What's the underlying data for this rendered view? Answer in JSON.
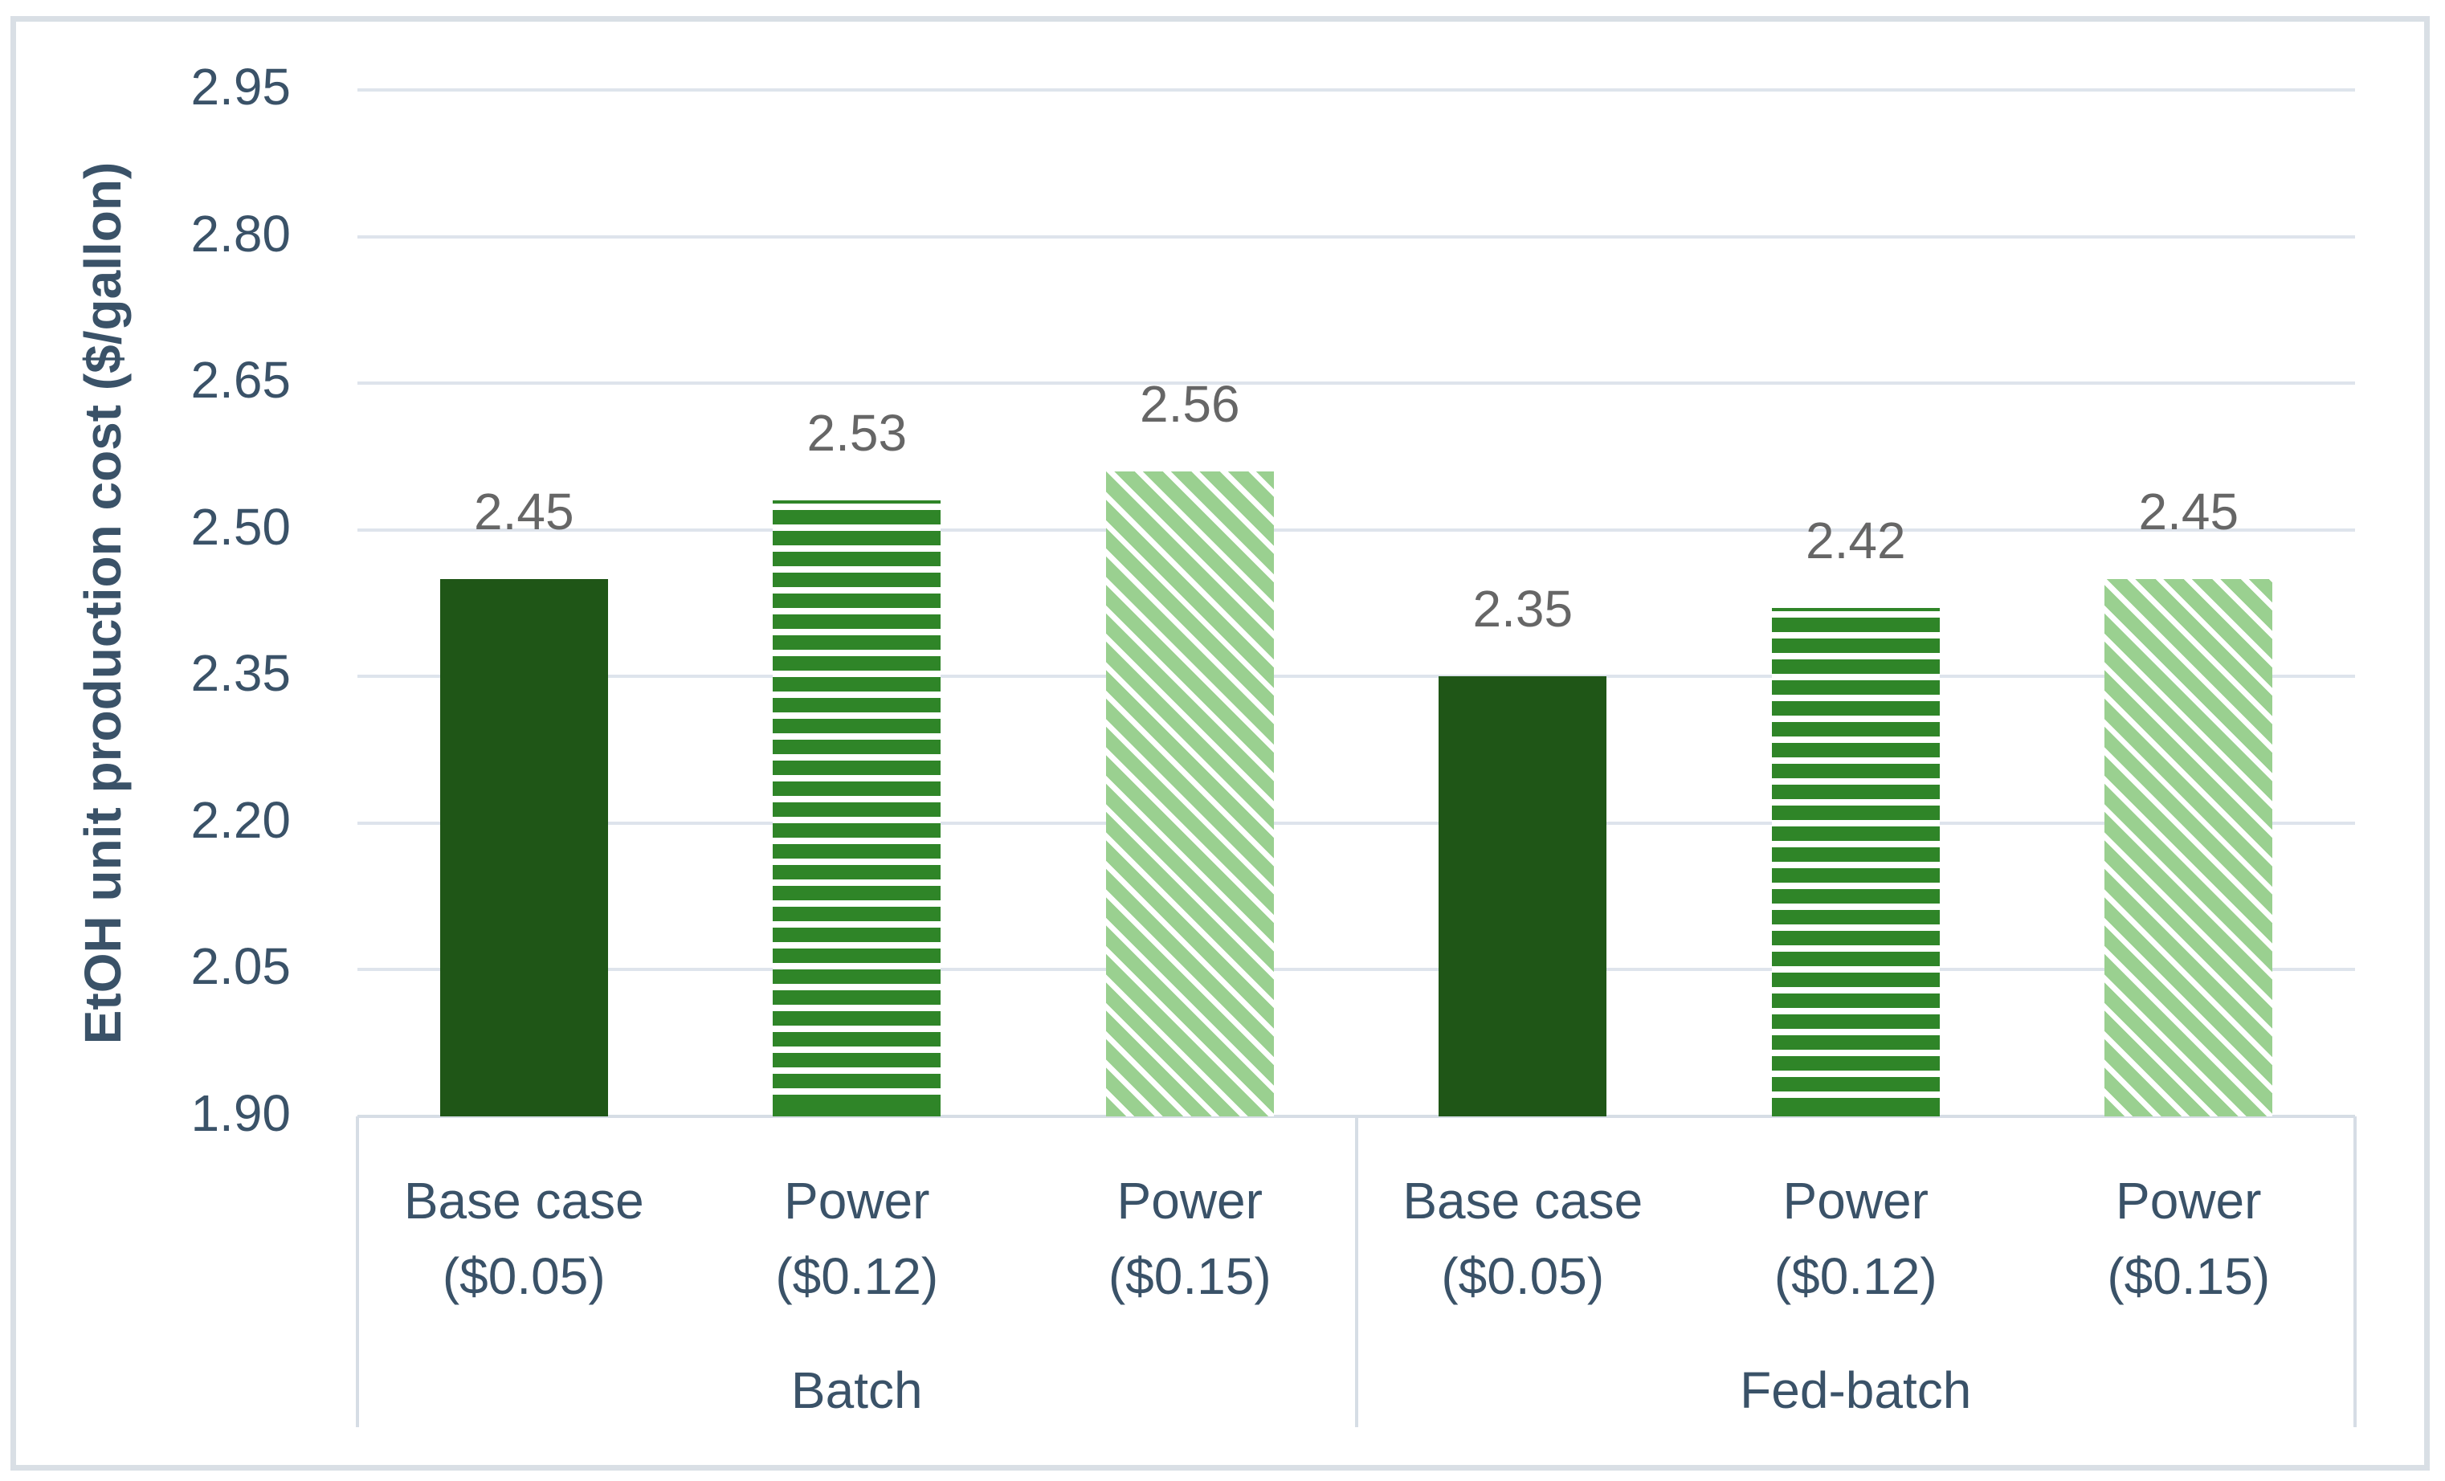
{
  "y_axis": {
    "title": "EtOH unit production cost ($/gallon)",
    "tick_labels": [
      "2.95",
      "2.80",
      "2.65",
      "2.50",
      "2.35",
      "2.20",
      "2.05",
      "1.90"
    ]
  },
  "x_axis": {
    "groups": [
      {
        "label": "Batch",
        "categories": [
          {
            "line1": "Base case",
            "line2": "($0.05)"
          },
          {
            "line1": "Power",
            "line2": "($0.12)"
          },
          {
            "line1": "Power",
            "line2": "($0.15)"
          }
        ]
      },
      {
        "label": "Fed-batch",
        "categories": [
          {
            "line1": "Base case",
            "line2": "($0.05)"
          },
          {
            "line1": "Power",
            "line2": "($0.12)"
          },
          {
            "line1": "Power",
            "line2": "($0.15)"
          }
        ]
      }
    ]
  },
  "chart_data": {
    "type": "bar",
    "title": "",
    "xlabel": "",
    "ylabel": "EtOH unit production cost ($/gallon)",
    "ylim": [
      1.9,
      2.95
    ],
    "ytick_step": 0.15,
    "grid": true,
    "legend": "none",
    "group_labels": [
      "Batch",
      "Fed-batch"
    ],
    "categories": [
      "Base case ($0.05)",
      "Power ($0.12)",
      "Power ($0.15)",
      "Base case ($0.05)",
      "Power ($0.12)",
      "Power ($0.15)"
    ],
    "series": [
      {
        "name": "EtOH unit production cost ($/gallon)",
        "values": [
          2.45,
          2.53,
          2.56,
          2.35,
          2.42,
          2.45
        ]
      }
    ],
    "data_labels": [
      "2.45",
      "2.53",
      "2.56",
      "2.35",
      "2.42",
      "2.45"
    ],
    "bar_fill_styles": [
      "solid-dark-green",
      "horizontal-stripes-green",
      "diagonal-stripes-light-green",
      "solid-dark-green",
      "horizontal-stripes-green",
      "diagonal-stripes-light-green"
    ]
  },
  "colors": {
    "solid_green": "#1F5617",
    "stripe_green": "#2F8528",
    "light_green": "#9AD090",
    "gridline": "#DEE4EC",
    "axis_line": "#D6DDE5",
    "border": "#D9DFE5",
    "text_navy": "#3A5268",
    "data_label_gray": "#666666",
    "background": "#FFFFFF"
  }
}
